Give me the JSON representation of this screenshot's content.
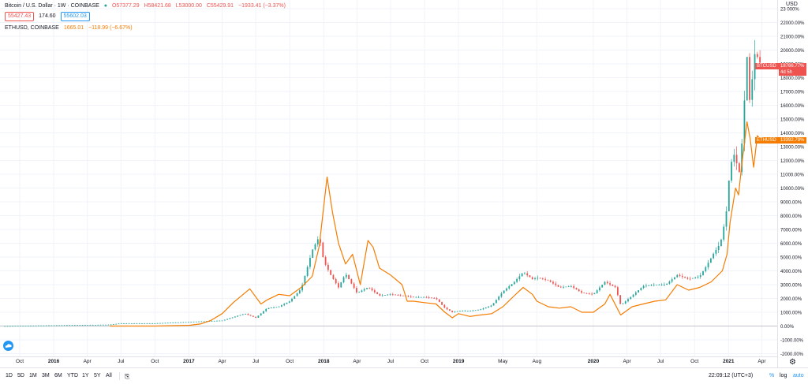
{
  "header": {
    "symbol_title": "Bitcoin / U.S. Dollar · 1W · COINBASE",
    "ohlc": {
      "o": "O57377.29",
      "h": "H58421.68",
      "l": "L53000.00",
      "c": "C55429.91",
      "chg": "−1933.41 (−3.37%)"
    },
    "sell_price": "55427.43",
    "spread": "174.60",
    "buy_price": "55602.03",
    "compare_symbol": "ETHUSD, COINBASE",
    "compare_price": "1665.01",
    "compare_chg": "−118.99 (−6.67%)",
    "currency": "USD"
  },
  "price_tags": {
    "btc_label": "BTCUSD",
    "btc_value": "18766.77%",
    "btc_countdown": "4d 5h",
    "eth_label": "ETHUSD",
    "eth_value": "13392.79%"
  },
  "colors": {
    "up": "#26a69a",
    "down": "#ef5350",
    "eth": "#f57c00",
    "grid": "#f0f3fa",
    "axis_text": "#131722"
  },
  "chart_data": {
    "type": "line",
    "y_scale": "percent",
    "ylim": [
      -2500,
      23000
    ],
    "y_ticks": [
      -2000,
      -1000,
      0,
      1000,
      2000,
      3000,
      4000,
      5000,
      6000,
      7000,
      8000,
      9000,
      10000,
      11000,
      12000,
      13000,
      14000,
      15000,
      16000,
      17000,
      18000,
      19000,
      20000,
      21000,
      22000,
      23000
    ],
    "y_tick_labels": [
      "-2000.00%",
      "-1000.00%",
      "0.00%",
      "1000.00%",
      "2000.00%",
      "3000.00%",
      "4000.00%",
      "5000.00%",
      "6000.00%",
      "7000.00%",
      "8000.00%",
      "9000.00%",
      "10000.00%",
      "11000.00%",
      "12000.00%",
      "13000.00%",
      "14000.00%",
      "15000.00%",
      "16000.00%",
      "17000.00%",
      "18000.00%",
      "19000.00%",
      "20000.00%",
      "21000.00%",
      "22000.00%",
      "23 000%"
    ],
    "x_range": [
      "2015-08-15",
      "2021-04-15"
    ],
    "x_ticks": [
      {
        "date": "2015-10-01",
        "label": "Oct",
        "bold": false
      },
      {
        "date": "2016-01-01",
        "label": "2016",
        "bold": true
      },
      {
        "date": "2016-04-01",
        "label": "Apr",
        "bold": false
      },
      {
        "date": "2016-07-01",
        "label": "Jul",
        "bold": false
      },
      {
        "date": "2016-10-01",
        "label": "Oct",
        "bold": false
      },
      {
        "date": "2017-01-01",
        "label": "2017",
        "bold": true
      },
      {
        "date": "2017-04-01",
        "label": "Apr",
        "bold": false
      },
      {
        "date": "2017-07-01",
        "label": "Jul",
        "bold": false
      },
      {
        "date": "2017-10-01",
        "label": "Oct",
        "bold": false
      },
      {
        "date": "2018-01-01",
        "label": "2018",
        "bold": true
      },
      {
        "date": "2018-04-01",
        "label": "Apr",
        "bold": false
      },
      {
        "date": "2018-07-01",
        "label": "Jul",
        "bold": false
      },
      {
        "date": "2018-10-01",
        "label": "Oct",
        "bold": false
      },
      {
        "date": "2019-01-01",
        "label": "2019",
        "bold": true
      },
      {
        "date": "2019-05-01",
        "label": "May",
        "bold": false
      },
      {
        "date": "2019-08-01",
        "label": "Aug",
        "bold": false
      },
      {
        "date": "2020-01-01",
        "label": "2020",
        "bold": true
      },
      {
        "date": "2020-04-01",
        "label": "Apr",
        "bold": false
      },
      {
        "date": "2020-07-01",
        "label": "Jul",
        "bold": false
      },
      {
        "date": "2020-10-01",
        "label": "Oct",
        "bold": false
      },
      {
        "date": "2021-01-01",
        "label": "2021",
        "bold": true
      },
      {
        "date": "2021-04-01",
        "label": "Apr",
        "bold": false
      }
    ],
    "btc_series": {
      "name": "BTCUSD",
      "points": [
        [
          "2015-08-15",
          0
        ],
        [
          "2016-01-01",
          50
        ],
        [
          "2016-06-01",
          100
        ],
        [
          "2016-07-01",
          200
        ],
        [
          "2016-10-01",
          200
        ],
        [
          "2017-01-01",
          300
        ],
        [
          "2017-04-01",
          400
        ],
        [
          "2017-06-01",
          900
        ],
        [
          "2017-07-01",
          600
        ],
        [
          "2017-08-01",
          1300
        ],
        [
          "2017-09-01",
          1400
        ],
        [
          "2017-10-01",
          1800
        ],
        [
          "2017-11-01",
          2700
        ],
        [
          "2017-12-01",
          5500
        ],
        [
          "2017-12-20",
          6500
        ],
        [
          "2018-01-01",
          4700
        ],
        [
          "2018-01-20",
          3700
        ],
        [
          "2018-02-10",
          2800
        ],
        [
          "2018-03-01",
          3800
        ],
        [
          "2018-04-01",
          2400
        ],
        [
          "2018-05-01",
          2800
        ],
        [
          "2018-06-01",
          2200
        ],
        [
          "2018-07-01",
          2300
        ],
        [
          "2018-08-01",
          2200
        ],
        [
          "2018-09-01",
          2100
        ],
        [
          "2018-10-01",
          2100
        ],
        [
          "2018-11-01",
          2000
        ],
        [
          "2018-11-25",
          1300
        ],
        [
          "2018-12-15",
          1000
        ],
        [
          "2019-01-01",
          1100
        ],
        [
          "2019-02-01",
          1100
        ],
        [
          "2019-03-01",
          1200
        ],
        [
          "2019-04-01",
          1500
        ],
        [
          "2019-05-01",
          2500
        ],
        [
          "2019-06-01",
          3200
        ],
        [
          "2019-06-25",
          3900
        ],
        [
          "2019-07-20",
          3400
        ],
        [
          "2019-08-01",
          3500
        ],
        [
          "2019-09-01",
          3300
        ],
        [
          "2019-10-01",
          2800
        ],
        [
          "2019-11-01",
          2900
        ],
        [
          "2019-12-01",
          2400
        ],
        [
          "2020-01-01",
          2300
        ],
        [
          "2020-02-01",
          3200
        ],
        [
          "2020-03-01",
          2800
        ],
        [
          "2020-03-15",
          1500
        ],
        [
          "2020-04-15",
          2200
        ],
        [
          "2020-05-15",
          2900
        ],
        [
          "2020-06-15",
          3000
        ],
        [
          "2020-07-15",
          3000
        ],
        [
          "2020-08-15",
          3700
        ],
        [
          "2020-09-15",
          3400
        ],
        [
          "2020-10-15",
          3600
        ],
        [
          "2020-11-01",
          4300
        ],
        [
          "2020-11-20",
          5200
        ],
        [
          "2020-12-10",
          6000
        ],
        [
          "2020-12-25",
          8000
        ],
        [
          "2021-01-05",
          11500
        ],
        [
          "2021-01-15",
          12500
        ],
        [
          "2021-02-01",
          11000
        ],
        [
          "2021-02-10",
          15000
        ],
        [
          "2021-02-20",
          19500
        ],
        [
          "2021-03-01",
          15500
        ],
        [
          "2021-03-10",
          19800
        ],
        [
          "2021-03-20",
          19500
        ],
        [
          "2021-04-01",
          18800
        ]
      ]
    },
    "eth_series": {
      "name": "ETHUSD",
      "points": [
        [
          "2016-06-01",
          0
        ],
        [
          "2016-10-01",
          0
        ],
        [
          "2017-01-01",
          50
        ],
        [
          "2017-02-01",
          150
        ],
        [
          "2017-03-01",
          400
        ],
        [
          "2017-04-01",
          900
        ],
        [
          "2017-05-01",
          1700
        ],
        [
          "2017-06-15",
          2700
        ],
        [
          "2017-07-15",
          1600
        ],
        [
          "2017-08-01",
          1900
        ],
        [
          "2017-09-01",
          2300
        ],
        [
          "2017-10-01",
          2200
        ],
        [
          "2017-11-01",
          2800
        ],
        [
          "2017-12-01",
          3600
        ],
        [
          "2017-12-20",
          5800
        ],
        [
          "2018-01-10",
          10800
        ],
        [
          "2018-01-25",
          8200
        ],
        [
          "2018-02-10",
          6000
        ],
        [
          "2018-03-01",
          4500
        ],
        [
          "2018-03-20",
          5200
        ],
        [
          "2018-04-10",
          3000
        ],
        [
          "2018-05-01",
          6200
        ],
        [
          "2018-05-15",
          5700
        ],
        [
          "2018-06-01",
          4200
        ],
        [
          "2018-07-01",
          3700
        ],
        [
          "2018-08-01",
          3000
        ],
        [
          "2018-08-15",
          1800
        ],
        [
          "2018-09-01",
          1800
        ],
        [
          "2018-10-01",
          1700
        ],
        [
          "2018-11-01",
          1600
        ],
        [
          "2018-11-25",
          1000
        ],
        [
          "2018-12-15",
          600
        ],
        [
          "2019-01-01",
          900
        ],
        [
          "2019-02-01",
          700
        ],
        [
          "2019-03-01",
          800
        ],
        [
          "2019-04-01",
          900
        ],
        [
          "2019-05-01",
          1400
        ],
        [
          "2019-06-01",
          2200
        ],
        [
          "2019-06-25",
          2800
        ],
        [
          "2019-07-20",
          2300
        ],
        [
          "2019-08-01",
          1800
        ],
        [
          "2019-09-01",
          1400
        ],
        [
          "2019-10-01",
          1300
        ],
        [
          "2019-11-01",
          1400
        ],
        [
          "2019-12-01",
          1000
        ],
        [
          "2020-01-01",
          1000
        ],
        [
          "2020-02-01",
          1600
        ],
        [
          "2020-02-15",
          2300
        ],
        [
          "2020-03-15",
          800
        ],
        [
          "2020-04-15",
          1400
        ],
        [
          "2020-05-15",
          1600
        ],
        [
          "2020-06-15",
          1800
        ],
        [
          "2020-07-15",
          1900
        ],
        [
          "2020-08-15",
          3000
        ],
        [
          "2020-09-15",
          2600
        ],
        [
          "2020-10-15",
          2800
        ],
        [
          "2020-11-15",
          3200
        ],
        [
          "2020-12-15",
          4000
        ],
        [
          "2020-12-28",
          5200
        ],
        [
          "2021-01-05",
          7500
        ],
        [
          "2021-01-20",
          10000
        ],
        [
          "2021-01-28",
          9500
        ],
        [
          "2021-02-05",
          11500
        ],
        [
          "2021-02-20",
          14800
        ],
        [
          "2021-03-01",
          13500
        ],
        [
          "2021-03-10",
          11500
        ],
        [
          "2021-03-20",
          13800
        ],
        [
          "2021-04-01",
          13400
        ]
      ]
    }
  },
  "bottom_bar": {
    "ranges": [
      "1D",
      "5D",
      "1M",
      "3M",
      "6M",
      "YTD",
      "1Y",
      "5Y",
      "All"
    ],
    "clock": "22:09:12 (UTC+3)",
    "percent_label": "%",
    "log_label": "log",
    "auto_label": "auto"
  }
}
